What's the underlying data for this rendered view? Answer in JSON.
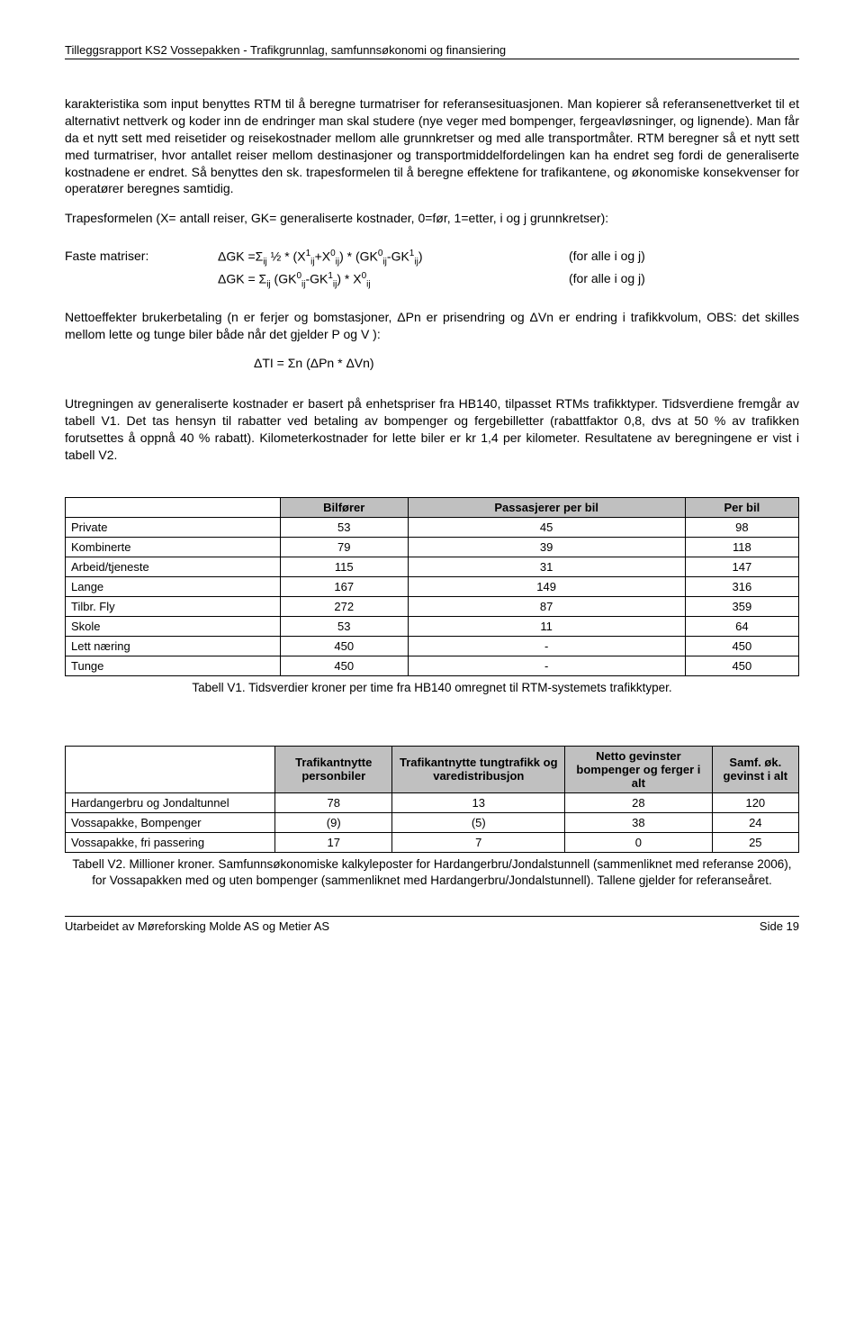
{
  "header": {
    "title": "Tilleggsrapport KS2 Vossepakken - Trafikgrunnlag, samfunnsøkonomi og finansiering"
  },
  "paragraphs": {
    "p1": "karakteristika som input benyttes RTM til å beregne turmatriser for referansesituasjonen. Man kopierer så referansenettverket til et alternativt nettverk og koder inn de endringer man skal studere (nye veger med bompenger, fergeavløsninger, og lignende). Man får da et nytt sett med reisetider og reisekostnader mellom alle grunnkretser og med alle transportmåter. RTM beregner så et nytt sett med turmatriser, hvor antallet reiser mellom destinasjoner og transportmiddelfordelingen kan ha endret seg fordi de generaliserte kostnadene er endret. Så benyttes den sk. trapesformelen til å beregne effektene for trafikantene, og økonomiske konsekvenser for operatører beregnes samtidig.",
    "p2": "Trapesformelen (X= antall reiser, GK= generaliserte kostnader, 0=før, 1=etter, i og j grunnkretser):",
    "p3": "Nettoeffekter brukerbetaling (n er ferjer og bomstasjoner, ΔPn er prisendring og ΔVn er endring i trafikkvolum, OBS: det skilles mellom lette og tunge biler både når det gjelder P og V ):",
    "p4": "Utregningen av generaliserte kostnader er basert på enhetspriser fra HB140, tilpasset RTMs trafikktyper. Tidsverdiene fremgår av tabell V1. Det tas hensyn til rabatter ved betaling av bompenger og fergebilletter (rabattfaktor 0,8, dvs at 50 % av trafikken forutsettes å oppnå 40 % rabatt). Kilometerkostnader for lette biler er kr 1,4 per kilometer. Resultatene av beregningene er vist i tabell V2."
  },
  "formulas": {
    "label1": "Faste matriser:",
    "f1": "ΔGK =Σ",
    "f1b": " ½ * (X",
    "f1c": "+X",
    "f1d": ") * (GK",
    "f1e": "-GK",
    "f1f": ")",
    "note1": "(for alle i og j)",
    "f2": "ΔGK = Σ",
    "f2b": " (GK",
    "f2c": "-GK",
    "f2d": ") * X",
    "note2": "(for alle i og j)",
    "f3": "ΔTI = Σn (ΔPn * ΔVn)"
  },
  "table1": {
    "headers": [
      "",
      "Bilfører",
      "Passasjerer per bil",
      "Per bil"
    ],
    "rows": [
      [
        "Private",
        "53",
        "45",
        "98"
      ],
      [
        "Kombinerte",
        "79",
        "39",
        "118"
      ],
      [
        "Arbeid/tjeneste",
        "115",
        "31",
        "147"
      ],
      [
        "Lange",
        "167",
        "149",
        "316"
      ],
      [
        "Tilbr. Fly",
        "272",
        "87",
        "359"
      ],
      [
        "Skole",
        "53",
        "11",
        "64"
      ],
      [
        "Lett næring",
        "450",
        "-",
        "450"
      ],
      [
        "Tunge",
        "450",
        "-",
        "450"
      ]
    ],
    "caption": "Tabell V1. Tidsverdier kroner per time fra HB140 omregnet til RTM-systemets trafikktyper.",
    "header_bg": "#c0c0c0"
  },
  "table2": {
    "headers": [
      "",
      "Trafikantnytte personbiler",
      "Trafikantnytte tungtrafikk og varedistribusjon",
      "Netto gevinster bompenger og ferger i alt",
      "Samf. øk. gevinst i alt"
    ],
    "rows": [
      [
        "Hardangerbru og Jondaltunnel",
        "78",
        "13",
        "28",
        "120"
      ],
      [
        "Vossapakke, Bompenger",
        "(9)",
        "(5)",
        "38",
        "24"
      ],
      [
        "Vossapakke, fri passering",
        "17",
        "7",
        "0",
        "25"
      ]
    ],
    "caption": "Tabell V2. Millioner kroner. Samfunnsøkonomiske kalkyleposter for Hardangerbru/Jondalstunnell (sammenliknet med referanse 2006), for Vossapakken med og uten bompenger (sammenliknet med Hardangerbru/Jondalstunnell). Tallene gjelder for referanseåret.",
    "header_bg": "#c0c0c0"
  },
  "footer": {
    "left": "Utarbeidet av Møreforsking Molde AS og Metier AS",
    "right": "Side 19"
  }
}
